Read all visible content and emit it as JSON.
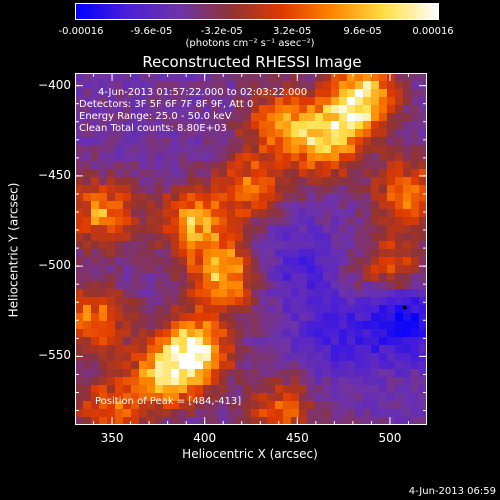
{
  "colorbar": {
    "tick_labels": [
      "-0.00016",
      "-9.6e-05",
      "-3.2e-05",
      "3.2e-05",
      "9.6e-05",
      "0.00016"
    ],
    "units_label": "(photons cm⁻² s⁻¹ asec⁻²)",
    "range": [
      -0.00016,
      0.00016
    ],
    "colors": [
      "#0000ff",
      "#4b1fd6",
      "#6e33a8",
      "#8f3333",
      "#e03a00",
      "#ff8a00",
      "#ffe04a",
      "#ffffff"
    ]
  },
  "chart_data": {
    "type": "heatmap",
    "title": "Reconstructed RHESSI Image",
    "xlabel": "Heliocentric X (arcsec)",
    "ylabel": "Heliocentric Y (arcsec)",
    "xlim": [
      330,
      520
    ],
    "ylim": [
      -588,
      -393
    ],
    "xticks": [
      350,
      400,
      450,
      500
    ],
    "yticks": [
      -400,
      -450,
      -500,
      -550
    ],
    "annotations": [
      "4-Jun-2013 01:57:22.000 to 02:03:22.000",
      "Detectors: 3F 5F 6F 7F 8F 9F, Att 0",
      "Energy Range: 25.0 - 50.0 keV",
      "Clean     Total counts: 8.80E+03"
    ],
    "peak_label": "Position of Peak = [484,-413]",
    "peak": [
      484,
      -413
    ],
    "hot_regions": [
      {
        "x": 484,
        "y": -408,
        "strength": 1.0
      },
      {
        "x": 465,
        "y": -430,
        "strength": 0.8
      },
      {
        "x": 440,
        "y": -420,
        "strength": 0.6
      },
      {
        "x": 395,
        "y": -545,
        "strength": 0.85
      },
      {
        "x": 380,
        "y": -560,
        "strength": 0.8
      },
      {
        "x": 410,
        "y": -505,
        "strength": 0.75
      },
      {
        "x": 395,
        "y": -475,
        "strength": 0.7
      },
      {
        "x": 345,
        "y": -470,
        "strength": 0.65
      },
      {
        "x": 340,
        "y": -530,
        "strength": 0.6
      },
      {
        "x": 350,
        "y": -580,
        "strength": 0.55
      },
      {
        "x": 510,
        "y": -460,
        "strength": 0.6
      },
      {
        "x": 500,
        "y": -500,
        "strength": 0.45
      },
      {
        "x": 440,
        "y": -580,
        "strength": 0.5
      },
      {
        "x": 425,
        "y": -455,
        "strength": 0.55
      }
    ],
    "cold_regions": [
      {
        "x": 508,
        "y": -530,
        "strength": 1.0
      },
      {
        "x": 470,
        "y": -540,
        "strength": 0.55
      },
      {
        "x": 450,
        "y": -500,
        "strength": 0.5
      }
    ]
  },
  "timestamp": "4-Jun-2013 06:59"
}
